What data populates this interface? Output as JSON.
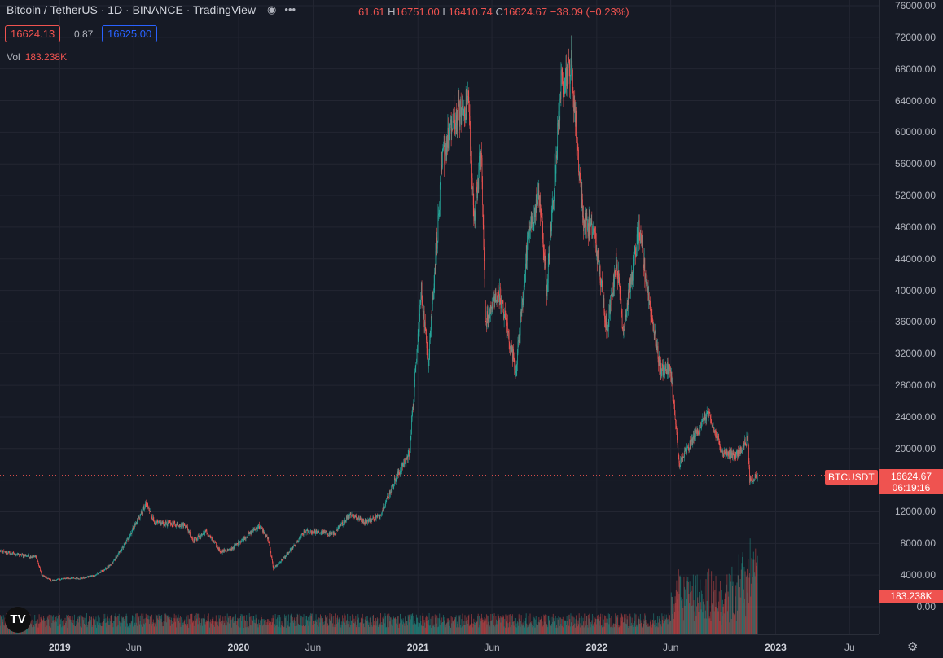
{
  "legend": {
    "title": "Bitcoin / TetherUS · 1D · BINANCE · TradingView",
    "ohlc": {
      "o_label": "",
      "o": "61.61",
      "h_label": "H",
      "h": "16751.00",
      "l_label": "L",
      "l": "16410.74",
      "c_label": "C",
      "c": "16624.67",
      "change": "−38.09 (−0.23%)"
    },
    "bid": "16624.13",
    "spread": "0.87",
    "ask": "16625.00",
    "vol_label": "Vol",
    "vol_value": "183.238K"
  },
  "right_axis_labels": {
    "symbol": "BTCUSDT",
    "last_price": "16624.67",
    "countdown": "06:19:16",
    "volume": "183.238K"
  },
  "logo_text": "TV",
  "colors": {
    "up": "#26a69a",
    "down": "#ef5350",
    "bg": "#161a25",
    "grid": "#232632"
  },
  "chart_data": {
    "type": "candlestick",
    "symbol": "BTCUSDT",
    "interval": "1D",
    "y_ticks": [
      0,
      4000,
      8000,
      12000,
      16000,
      20000,
      24000,
      28000,
      32000,
      36000,
      40000,
      44000,
      48000,
      52000,
      56000,
      60000,
      64000,
      68000,
      72000,
      76000
    ],
    "y_tick_labels": [
      "0.00",
      "4000.00",
      "8000.00",
      "12000.00",
      "",
      "20000.00",
      "24000.00",
      "28000.00",
      "32000.00",
      "36000.00",
      "40000.00",
      "44000.00",
      "48000.00",
      "52000.00",
      "56000.00",
      "60000.00",
      "64000.00",
      "68000.00",
      "72000.00",
      "76000.00"
    ],
    "x_ticks": [
      {
        "date": "2019-01-01",
        "label": "2019",
        "bold": true
      },
      {
        "date": "2019-06-01",
        "label": "Jun",
        "bold": false
      },
      {
        "date": "2020-01-01",
        "label": "2020",
        "bold": true
      },
      {
        "date": "2020-06-01",
        "label": "Jun",
        "bold": false
      },
      {
        "date": "2021-01-01",
        "label": "2021",
        "bold": true
      },
      {
        "date": "2021-06-01",
        "label": "Jun",
        "bold": false
      },
      {
        "date": "2022-01-01",
        "label": "2022",
        "bold": true
      },
      {
        "date": "2022-06-01",
        "label": "Jun",
        "bold": false
      },
      {
        "date": "2023-01-01",
        "label": "2023",
        "bold": true
      },
      {
        "date": "2023-06-01",
        "label": "Ju",
        "bold": false
      }
    ],
    "price_points": [
      [
        "2018-09-01",
        7000
      ],
      [
        "2018-10-15",
        6500
      ],
      [
        "2018-11-14",
        6300
      ],
      [
        "2018-11-25",
        4000
      ],
      [
        "2018-12-15",
        3300
      ],
      [
        "2019-01-15",
        3600
      ],
      [
        "2019-02-15",
        3600
      ],
      [
        "2019-03-15",
        4000
      ],
      [
        "2019-04-15",
        5200
      ],
      [
        "2019-05-15",
        8000
      ],
      [
        "2019-06-26",
        13000
      ],
      [
        "2019-07-15",
        10500
      ],
      [
        "2019-08-15",
        10500
      ],
      [
        "2019-09-15",
        10300
      ],
      [
        "2019-10-01",
        8300
      ],
      [
        "2019-10-26",
        9500
      ],
      [
        "2019-11-25",
        7000
      ],
      [
        "2019-12-15",
        7200
      ],
      [
        "2020-01-15",
        8800
      ],
      [
        "2020-02-12",
        10300
      ],
      [
        "2020-03-01",
        8600
      ],
      [
        "2020-03-12",
        4800
      ],
      [
        "2020-04-15",
        7000
      ],
      [
        "2020-05-15",
        9500
      ],
      [
        "2020-06-15",
        9400
      ],
      [
        "2020-07-15",
        9200
      ],
      [
        "2020-08-15",
        11800
      ],
      [
        "2020-09-15",
        10700
      ],
      [
        "2020-10-15",
        11500
      ],
      [
        "2020-11-15",
        16000
      ],
      [
        "2020-12-15",
        19500
      ],
      [
        "2021-01-08",
        40000
      ],
      [
        "2021-01-22",
        31000
      ],
      [
        "2021-02-21",
        57000
      ],
      [
        "2021-03-13",
        61000
      ],
      [
        "2021-04-14",
        64000
      ],
      [
        "2021-04-25",
        49000
      ],
      [
        "2021-05-10",
        58000
      ],
      [
        "2021-05-19",
        36000
      ],
      [
        "2021-06-15",
        40000
      ],
      [
        "2021-07-20",
        30000
      ],
      [
        "2021-08-15",
        47000
      ],
      [
        "2021-09-06",
        52000
      ],
      [
        "2021-09-21",
        40000
      ],
      [
        "2021-10-20",
        66000
      ],
      [
        "2021-11-10",
        68500
      ],
      [
        "2021-12-04",
        49000
      ],
      [
        "2021-12-28",
        47000
      ],
      [
        "2022-01-22",
        35000
      ],
      [
        "2022-02-10",
        44000
      ],
      [
        "2022-02-24",
        35000
      ],
      [
        "2022-03-28",
        47500
      ],
      [
        "2022-04-15",
        40000
      ],
      [
        "2022-05-10",
        30000
      ],
      [
        "2022-06-01",
        30000
      ],
      [
        "2022-06-18",
        18000
      ],
      [
        "2022-07-15",
        21000
      ],
      [
        "2022-08-15",
        24500
      ],
      [
        "2022-09-15",
        19500
      ],
      [
        "2022-10-15",
        19200
      ],
      [
        "2022-11-05",
        21300
      ],
      [
        "2022-11-09",
        16000
      ],
      [
        "2022-11-25",
        16624.67
      ]
    ],
    "volume_peak_label": "183.238K",
    "last_price": 16624.67
  }
}
